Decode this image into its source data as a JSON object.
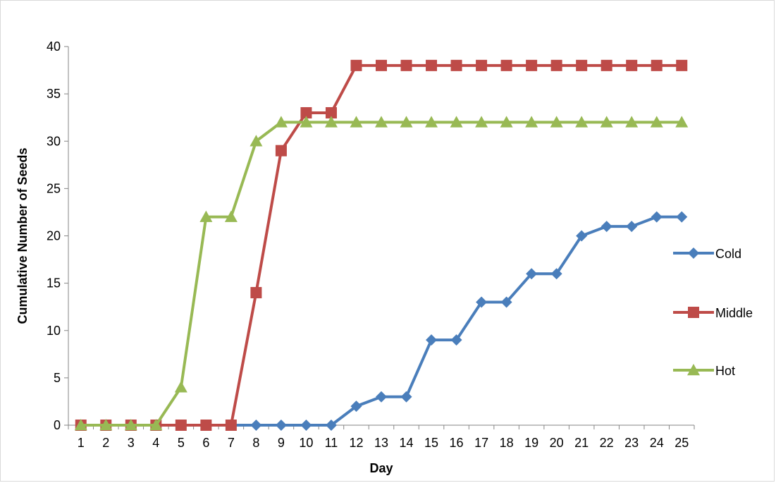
{
  "chart_data": {
    "type": "line",
    "title": "",
    "xlabel": "Day",
    "ylabel": "Cumulative Number of Seeds",
    "x": [
      1,
      2,
      3,
      4,
      5,
      6,
      7,
      8,
      9,
      10,
      11,
      12,
      13,
      14,
      15,
      16,
      17,
      18,
      19,
      20,
      21,
      22,
      23,
      24,
      25
    ],
    "ylim": [
      0,
      40
    ],
    "yticks": [
      0,
      5,
      10,
      15,
      20,
      25,
      30,
      35,
      40
    ],
    "grid": false,
    "legend_position": "right",
    "series": [
      {
        "name": "Cold",
        "color": "#4a7ebb",
        "marker": "diamond",
        "values": [
          0,
          0,
          0,
          0,
          0,
          0,
          0,
          0,
          0,
          0,
          0,
          2,
          3,
          3,
          9,
          9,
          13,
          13,
          16,
          16,
          20,
          21,
          21,
          22,
          22
        ]
      },
      {
        "name": "Middle",
        "color": "#be4b48",
        "marker": "square",
        "values": [
          0,
          0,
          0,
          0,
          0,
          0,
          0,
          14,
          29,
          33,
          33,
          38,
          38,
          38,
          38,
          38,
          38,
          38,
          38,
          38,
          38,
          38,
          38,
          38,
          38
        ]
      },
      {
        "name": "Hot",
        "color": "#98b954",
        "marker": "triangle",
        "values": [
          0,
          0,
          0,
          0,
          4,
          22,
          22,
          30,
          32,
          32,
          32,
          32,
          32,
          32,
          32,
          32,
          32,
          32,
          32,
          32,
          32,
          32,
          32,
          32,
          32
        ]
      }
    ]
  }
}
